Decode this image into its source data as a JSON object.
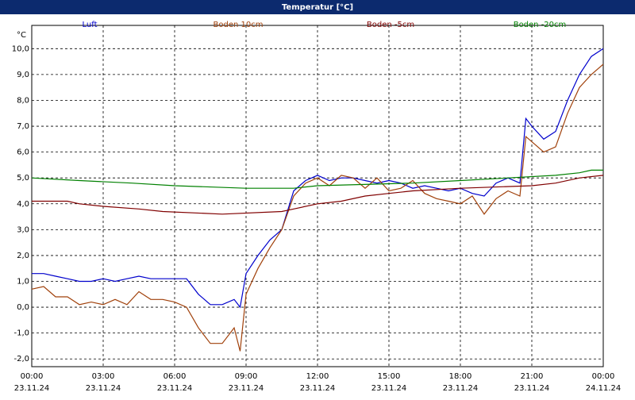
{
  "chart_data": {
    "type": "line",
    "title": "Temperatur [°C]",
    "y_unit": "°C",
    "xlim": [
      0,
      24
    ],
    "ylim": [
      -2.3,
      10.9
    ],
    "xticks": [
      {
        "value": 0,
        "label": "00:00"
      },
      {
        "value": 3,
        "label": "03:00"
      },
      {
        "value": 6,
        "label": "06:00"
      },
      {
        "value": 9,
        "label": "09:00"
      },
      {
        "value": 12,
        "label": "12:00"
      },
      {
        "value": 15,
        "label": "15:00"
      },
      {
        "value": 18,
        "label": "18:00"
      },
      {
        "value": 21,
        "label": "21:00"
      },
      {
        "value": 24,
        "label": "00:00"
      }
    ],
    "xtick_dates": [
      "23.11.24",
      "23.11.24",
      "23.11.24",
      "23.11.24",
      "23.11.24",
      "23.11.24",
      "23.11.24",
      "23.11.24",
      "24.11.24"
    ],
    "yticks": [
      {
        "value": 10,
        "label": "10,0"
      },
      {
        "value": 9,
        "label": "9,0"
      },
      {
        "value": 8,
        "label": "8,0"
      },
      {
        "value": 7,
        "label": "7,0"
      },
      {
        "value": 6,
        "label": "6,0"
      },
      {
        "value": 5,
        "label": "5,0"
      },
      {
        "value": 4,
        "label": "4,0"
      },
      {
        "value": 3,
        "label": "3,0"
      },
      {
        "value": 2,
        "label": "2,0"
      },
      {
        "value": 1,
        "label": "1,0"
      },
      {
        "value": 0,
        "label": "0,0"
      },
      {
        "value": -1,
        "label": "-1,0"
      },
      {
        "value": -2,
        "label": "-2,0"
      }
    ],
    "grid": true,
    "series": [
      {
        "name": "Luft",
        "color": "#0000cc",
        "x": [
          0,
          0.5,
          1,
          1.5,
          2,
          2.5,
          3,
          3.5,
          4,
          4.5,
          5,
          5.5,
          6,
          6.5,
          7,
          7.5,
          8,
          8.5,
          8.75,
          9,
          9.5,
          10,
          10.5,
          11,
          11.5,
          12,
          12.5,
          13,
          13.5,
          14,
          14.5,
          15,
          15.5,
          16,
          16.5,
          17,
          17.5,
          18,
          18.5,
          19,
          19.5,
          20,
          20.5,
          20.75,
          21,
          21.5,
          22,
          22.5,
          23,
          23.5,
          24
        ],
        "values": [
          1.3,
          1.3,
          1.2,
          1.1,
          1.0,
          1.0,
          1.1,
          1.0,
          1.1,
          1.2,
          1.1,
          1.1,
          1.1,
          1.1,
          0.5,
          0.1,
          0.1,
          0.3,
          0.0,
          1.3,
          2.0,
          2.6,
          3.0,
          4.5,
          4.9,
          5.1,
          4.9,
          5.0,
          5.0,
          4.9,
          4.8,
          4.9,
          4.8,
          4.6,
          4.7,
          4.6,
          4.5,
          4.6,
          4.4,
          4.3,
          4.8,
          5.0,
          4.8,
          7.3,
          7.0,
          6.5,
          6.8,
          8.0,
          9.0,
          9.7,
          10.0
        ]
      },
      {
        "name": "Boden 10cm",
        "color": "#a0400a",
        "x": [
          0,
          0.5,
          1,
          1.5,
          2,
          2.5,
          3,
          3.5,
          4,
          4.5,
          5,
          5.5,
          6,
          6.5,
          7,
          7.5,
          8,
          8.5,
          8.75,
          9,
          9.5,
          10,
          10.5,
          11,
          11.5,
          12,
          12.5,
          13,
          13.5,
          14,
          14.5,
          15,
          15.5,
          16,
          16.5,
          17,
          17.5,
          18,
          18.5,
          19,
          19.5,
          20,
          20.5,
          20.75,
          21,
          21.5,
          22,
          22.5,
          23,
          23.5,
          24
        ],
        "values": [
          0.7,
          0.8,
          0.4,
          0.4,
          0.1,
          0.2,
          0.1,
          0.3,
          0.1,
          0.6,
          0.3,
          0.3,
          0.2,
          0.0,
          -0.8,
          -1.4,
          -1.4,
          -0.8,
          -1.7,
          0.5,
          1.5,
          2.3,
          3.0,
          4.3,
          4.8,
          5.0,
          4.7,
          5.1,
          5.0,
          4.6,
          5.0,
          4.5,
          4.6,
          4.9,
          4.4,
          4.2,
          4.1,
          4.0,
          4.3,
          3.6,
          4.2,
          4.5,
          4.3,
          6.6,
          6.4,
          6.0,
          6.2,
          7.5,
          8.5,
          9.0,
          9.4
        ]
      },
      {
        "name": "Boden -5cm",
        "color": "#800000",
        "x": [
          0,
          1.5,
          2,
          3,
          4.5,
          5.5,
          8,
          10.5,
          11,
          12,
          13,
          14,
          15,
          16,
          18,
          21,
          22,
          23,
          24
        ],
        "values": [
          4.1,
          4.1,
          4.0,
          3.9,
          3.8,
          3.7,
          3.6,
          3.7,
          3.8,
          4.0,
          4.1,
          4.3,
          4.4,
          4.5,
          4.6,
          4.7,
          4.8,
          5.0,
          5.1
        ]
      },
      {
        "name": "Boden -20cm",
        "color": "#008000",
        "x": [
          0,
          2,
          4.2,
          6,
          9,
          11,
          12,
          16,
          18,
          20,
          22,
          23,
          23.5,
          24
        ],
        "values": [
          5.0,
          4.9,
          4.8,
          4.7,
          4.6,
          4.6,
          4.7,
          4.8,
          4.9,
          5.0,
          5.1,
          5.2,
          5.3,
          5.3
        ]
      }
    ]
  }
}
